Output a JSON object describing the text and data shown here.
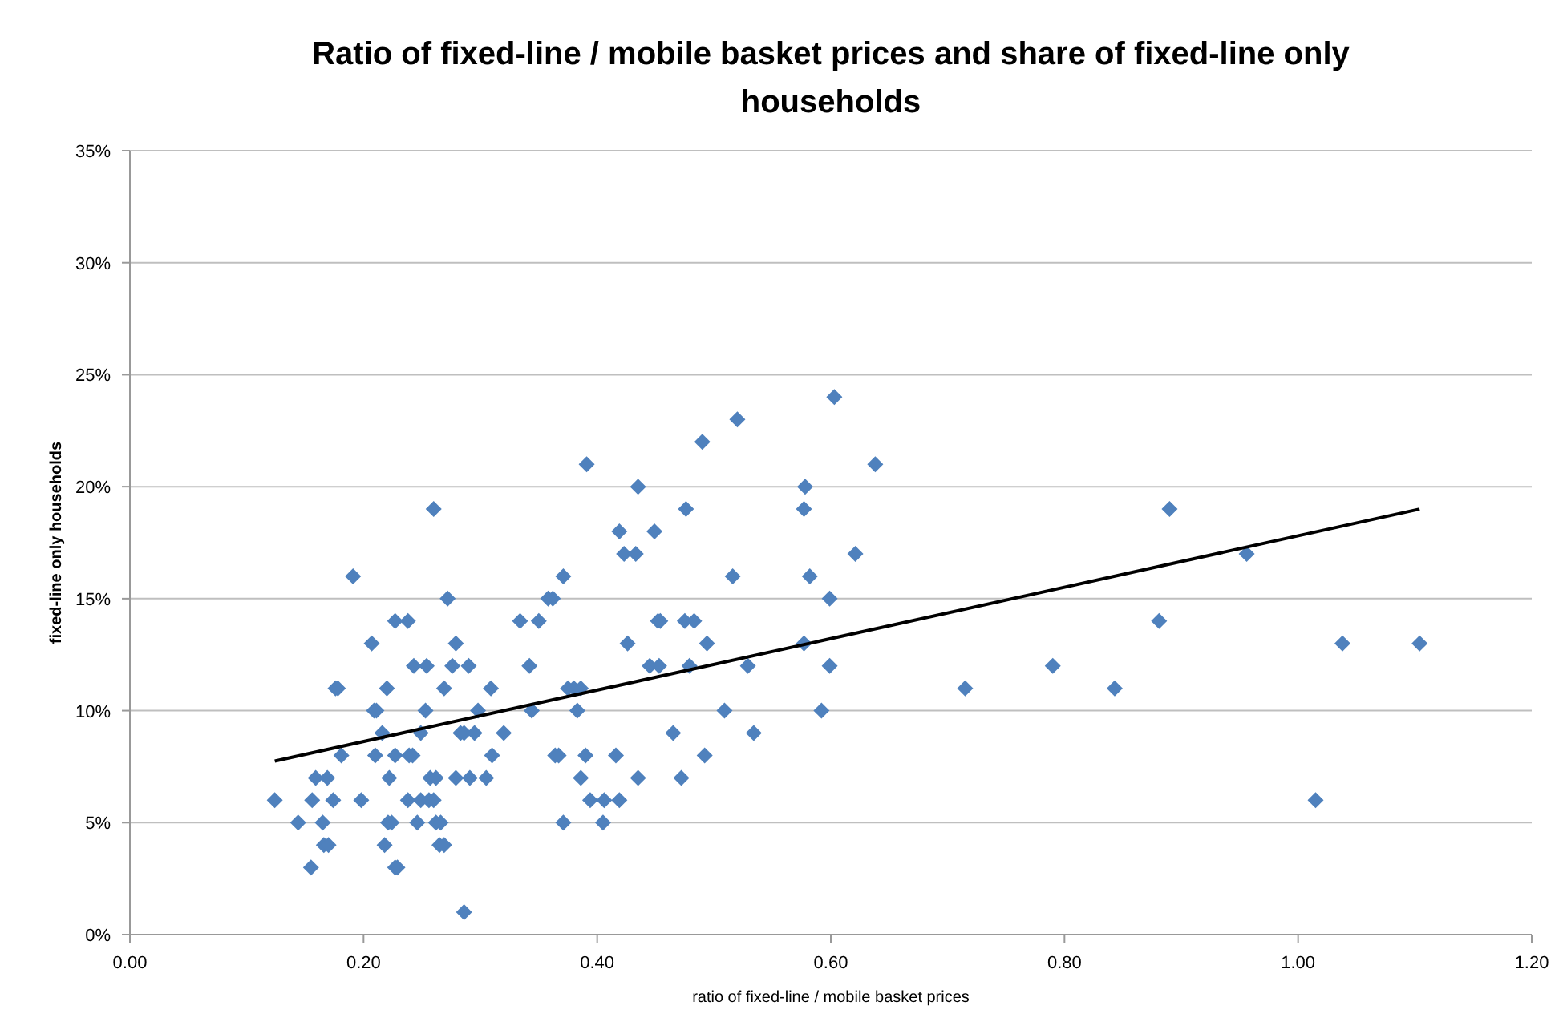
{
  "chart_data": {
    "type": "scatter",
    "title": "Ratio of fixed-line / mobile basket prices and share of fixed-line only households",
    "xlabel": "ratio of fixed-line  / mobile basket prices",
    "ylabel": "fixed-line only households",
    "xlim": [
      0,
      1.2
    ],
    "xticks": [
      {
        "value": 0,
        "label": "0.00"
      },
      {
        "value": 0.2,
        "label": "0.20"
      },
      {
        "value": 0.4,
        "label": "0.40"
      },
      {
        "value": 0.6,
        "label": "0.60"
      },
      {
        "value": 0.8,
        "label": "0.80"
      },
      {
        "value": 1,
        "label": "1.00"
      },
      {
        "value": 1.2,
        "label": "1.20"
      }
    ],
    "ylim": [
      0,
      35
    ],
    "yticks": [
      {
        "value": 0,
        "label": "0%"
      },
      {
        "value": 5,
        "label": "5%"
      },
      {
        "value": 10,
        "label": "10%"
      },
      {
        "value": 15,
        "label": "15%"
      },
      {
        "value": 20,
        "label": "20%"
      },
      {
        "value": 25,
        "label": "25%"
      },
      {
        "value": 30,
        "label": "30%"
      },
      {
        "value": 35,
        "label": "35%"
      }
    ],
    "grid": "y",
    "series": [
      {
        "color": "#4f81bd",
        "marker": "diamond",
        "x": [
          0.124,
          0.144,
          0.155,
          0.156,
          0.159,
          0.165,
          0.166,
          0.169,
          0.17,
          0.174,
          0.176,
          0.178,
          0.181,
          0.191,
          0.198,
          0.207,
          0.209,
          0.211,
          0.21,
          0.216,
          0.218,
          0.22,
          0.221,
          0.224,
          0.222,
          0.227,
          0.227,
          0.227,
          0.229,
          0.238,
          0.238,
          0.239,
          0.242,
          0.243,
          0.246,
          0.249,
          0.249,
          0.253,
          0.254,
          0.256,
          0.257,
          0.26,
          0.26,
          0.262,
          0.262,
          0.265,
          0.266,
          0.269,
          0.269,
          0.272,
          0.276,
          0.279,
          0.279,
          0.283,
          0.286,
          0.286,
          0.29,
          0.291,
          0.295,
          0.298,
          0.305,
          0.309,
          0.31,
          0.32,
          0.334,
          0.342,
          0.344,
          0.35,
          0.358,
          0.362,
          0.364,
          0.367,
          0.371,
          0.371,
          0.375,
          0.38,
          0.383,
          0.386,
          0.386,
          0.39,
          0.391,
          0.394,
          0.406,
          0.405,
          0.416,
          0.419,
          0.419,
          0.423,
          0.426,
          0.433,
          0.435,
          0.435,
          0.445,
          0.449,
          0.452,
          0.454,
          0.453,
          0.465,
          0.472,
          0.475,
          0.476,
          0.479,
          0.483,
          0.49,
          0.492,
          0.494,
          0.509,
          0.516,
          0.52,
          0.529,
          0.534,
          0.577,
          0.577,
          0.578,
          0.582,
          0.592,
          0.599,
          0.599,
          0.603,
          0.621,
          0.638,
          0.715,
          0.79,
          0.843,
          0.881,
          0.89,
          0.956,
          1.015,
          1.038,
          1.104
        ],
        "values": [
          6,
          5,
          3,
          6,
          7,
          5,
          4,
          7,
          4,
          6,
          11,
          11,
          8,
          16,
          6,
          13,
          10,
          10,
          8,
          9,
          4,
          11,
          5,
          5,
          7,
          14,
          8,
          3,
          3,
          14,
          6,
          8,
          8,
          12,
          5,
          9,
          6,
          10,
          12,
          6,
          7,
          6,
          19,
          5,
          7,
          4,
          5,
          4,
          11,
          15,
          12,
          7,
          13,
          9,
          9,
          1,
          12,
          7,
          9,
          10,
          7,
          11,
          8,
          9,
          14,
          12,
          10,
          14,
          15,
          15,
          8,
          8,
          16,
          5,
          11,
          11,
          10,
          7,
          11,
          8,
          21,
          6,
          6,
          5,
          8,
          6,
          18,
          17,
          13,
          17,
          20,
          7,
          12,
          18,
          14,
          14,
          12,
          9,
          7,
          14,
          19,
          12,
          14,
          22,
          8,
          13,
          10,
          16,
          23,
          12,
          9,
          19,
          13,
          20,
          16,
          10,
          15,
          12,
          24,
          17,
          21,
          11,
          12,
          11,
          14,
          19,
          17,
          6,
          13,
          13
        ]
      },
      {
        "type": "line",
        "color": "#000000",
        "marker": "none",
        "x": [
          0.124,
          1.104
        ],
        "values": [
          7.75,
          19
        ]
      }
    ]
  }
}
